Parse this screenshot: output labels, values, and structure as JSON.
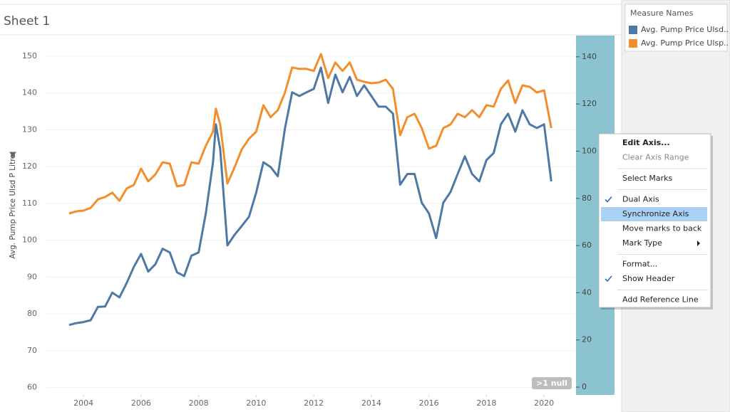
{
  "sheet_title": "Sheet 1",
  "chart_data": {
    "type": "line",
    "y_label": "Avg. Pump Price Ulsd P Litre",
    "x": [
      2003.5,
      2003.75,
      2004,
      2004.25,
      2004.5,
      2004.75,
      2005,
      2005.25,
      2005.5,
      2005.75,
      2006,
      2006.25,
      2006.5,
      2006.75,
      2007,
      2007.25,
      2007.5,
      2007.75,
      2008,
      2008.25,
      2008.5,
      2008.6,
      2008.75,
      2009,
      2009.25,
      2009.5,
      2009.75,
      2010,
      2010.25,
      2010.5,
      2010.75,
      2011,
      2011.25,
      2011.5,
      2011.75,
      2012,
      2012.25,
      2012.5,
      2012.75,
      2013,
      2013.25,
      2013.5,
      2013.75,
      2014,
      2014.25,
      2014.5,
      2014.75,
      2015,
      2015.25,
      2015.5,
      2015.75,
      2016,
      2016.25,
      2016.5,
      2016.75,
      2017,
      2017.25,
      2017.5,
      2017.75,
      2018,
      2018.25,
      2018.5,
      2018.75,
      2019,
      2019.25,
      2019.5,
      2019.75,
      2020,
      2020.25
    ],
    "series": [
      {
        "name": "Avg. Pump Price Ulsd..",
        "color": "#4e79a7",
        "axis": "y",
        "values": [
          77,
          77.5,
          77.8,
          78.3,
          81.9,
          82,
          85.8,
          84.5,
          88.4,
          92.8,
          96.3,
          91.5,
          93.5,
          97.7,
          96.7,
          91.3,
          90.3,
          95.8,
          96.7,
          107.3,
          121.2,
          131.5,
          124.7,
          98.6,
          101.5,
          103.9,
          106.4,
          113,
          121.2,
          119.9,
          117.4,
          130.5,
          140.2,
          139.2,
          140.2,
          141.1,
          146.9,
          137.3,
          145,
          140.2,
          144.4,
          139.2,
          142.1,
          139.2,
          136.3,
          136.3,
          134.4,
          115.1,
          118,
          118,
          110.2,
          107.3,
          100.6,
          110.2,
          113.1,
          118,
          122.8,
          118,
          116,
          121.8,
          123.7,
          131.5,
          134.4,
          129.5,
          135.3,
          131.5,
          130.5,
          131.5,
          116
        ]
      },
      {
        "name": "Avg. Pump Price Ulsp..",
        "color": "#f28e2b",
        "axis": "y2",
        "values": [
          73.6,
          74.5,
          74.8,
          76,
          79.6,
          80.6,
          82.4,
          79,
          84.2,
          85.7,
          92.6,
          87.2,
          90.2,
          95.3,
          94.7,
          85.1,
          85.7,
          95.3,
          94.7,
          102.3,
          108.3,
          118,
          111.3,
          86.3,
          93.2,
          100.8,
          105.3,
          108.3,
          119.5,
          114.4,
          117.4,
          124.9,
          135.5,
          134.9,
          134.9,
          134,
          141.2,
          131,
          137.6,
          134,
          137.6,
          130.3,
          129.4,
          128.8,
          129.1,
          130.3,
          126.4,
          106.8,
          114.4,
          115.9,
          109.8,
          101.1,
          102.3,
          109.8,
          111.3,
          115.9,
          114.4,
          117.4,
          114.4,
          119.5,
          118.9,
          126.4,
          130,
          120.4,
          127.9,
          127.3,
          124.9,
          125.8,
          109.8
        ]
      }
    ],
    "xlim": [
      2002.71,
      2021.11
    ],
    "xticks": [
      2004,
      2006,
      2008,
      2010,
      2012,
      2014,
      2016,
      2018,
      2020
    ],
    "ylim": [
      58,
      155.6
    ],
    "yticks": [
      60,
      70,
      80,
      90,
      100,
      110,
      120,
      130,
      140,
      150
    ],
    "y2lim": [
      -3.3,
      149
    ],
    "y2ticks": [
      0,
      20,
      40,
      60,
      80,
      100,
      120,
      140
    ],
    "grid": true,
    "annotation": ">1 null"
  },
  "legend_title": "Measure Names",
  "context_menu": [
    [
      {
        "label": "Edit Axis...",
        "bold": true
      },
      {
        "label": "Clear Axis Range",
        "disabled": true
      }
    ],
    [
      {
        "label": "Select Marks"
      }
    ],
    [
      {
        "label": "Dual Axis",
        "checked": true
      },
      {
        "label": "Synchronize Axis",
        "highlighted": true
      },
      {
        "label": "Move marks to back"
      },
      {
        "label": "Mark Type",
        "submenu": true
      }
    ],
    [
      {
        "label": "Format..."
      },
      {
        "label": "Show Header",
        "checked": true
      }
    ],
    [
      {
        "label": "Add Reference Line"
      }
    ]
  ]
}
